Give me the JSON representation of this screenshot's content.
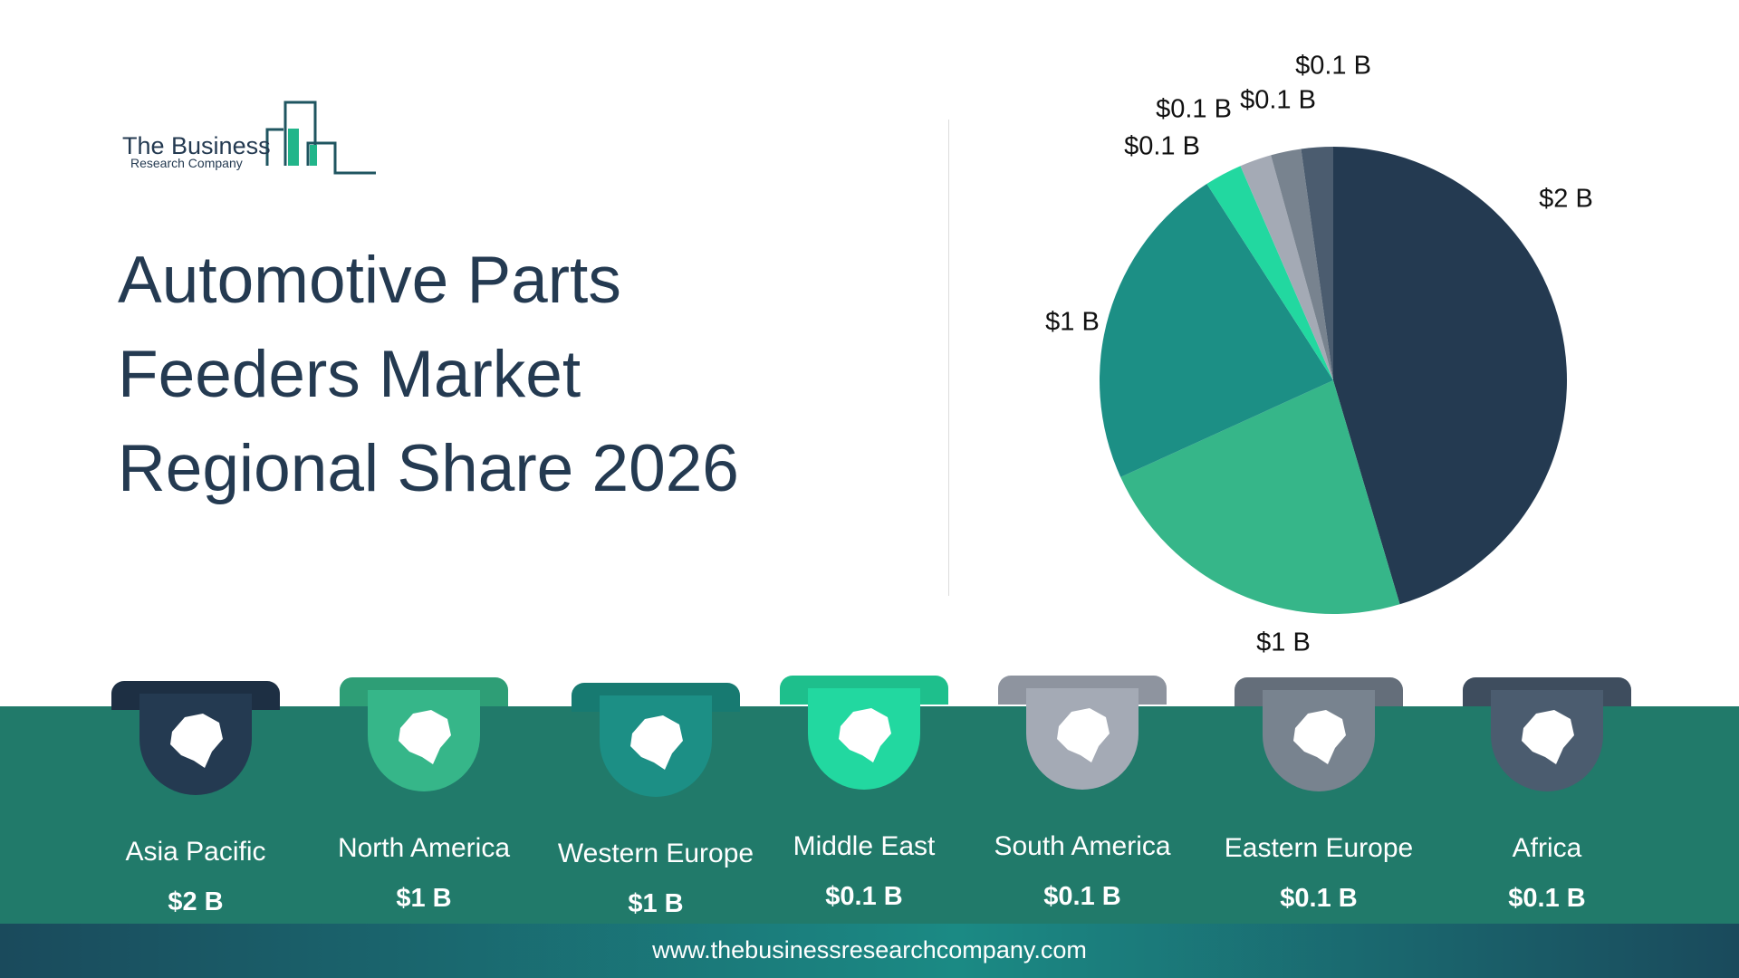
{
  "logo": {
    "line1": "The Business",
    "line2": "Research Company"
  },
  "title": [
    "Automotive Parts",
    "Feeders Market",
    "Regional Share 2026"
  ],
  "footer": {
    "url": "www.thebusinessresearchcompany.com"
  },
  "chart_data": {
    "type": "pie",
    "title": "Automotive Parts Feeders Market Regional Share 2026",
    "start": "top, clockwise",
    "slices": [
      {
        "name": "Asia Pacific",
        "label": "$2 B",
        "share_pct": 45.4,
        "color": "#243a51"
      },
      {
        "name": "North America",
        "label": "$1 B",
        "share_pct": 22.8,
        "color": "#36b689"
      },
      {
        "name": "Western Europe",
        "label": "$1 B",
        "share_pct": 22.7,
        "color": "#1c8f85"
      },
      {
        "name": "Middle East",
        "label": "$0.1 B",
        "share_pct": 2.6,
        "color": "#22d8a0"
      },
      {
        "name": "South America",
        "label": "$0.1 B",
        "share_pct": 2.2,
        "color": "#a4aab5"
      },
      {
        "name": "Eastern Europe",
        "label": "$0.1 B",
        "share_pct": 2.1,
        "color": "#78838f"
      },
      {
        "name": "Africa",
        "label": "$0.1 B",
        "share_pct": 2.2,
        "color": "#4b5c6f"
      }
    ]
  },
  "regions": [
    {
      "name": "Asia Pacific",
      "value": "$2 B",
      "icon": "asia-map-icon",
      "color": "#243a51",
      "tab": "#1d2f43"
    },
    {
      "name": "North America",
      "value": "$1 B",
      "icon": "north-america-map-icon",
      "color": "#36b689",
      "tab": "#2e9e76"
    },
    {
      "name": "Western Europe",
      "value": "$1 B",
      "icon": "europe-map-icon",
      "color": "#1c8f85",
      "tab": "#177a71"
    },
    {
      "name": "Middle East",
      "value": "$0.1 B",
      "icon": "middle-east-map-icon",
      "color": "#22d8a0",
      "tab": "#1ebf8c"
    },
    {
      "name": "South America",
      "value": "$0.1 B",
      "icon": "south-america-map-icon",
      "color": "#a4aab5",
      "tab": "#8e949f"
    },
    {
      "name": "Eastern Europe",
      "value": "$0.1 B",
      "icon": "eastern-europe-map-icon",
      "color": "#78838f",
      "tab": "#646e7a"
    },
    {
      "name": "Africa",
      "value": "$0.1 B",
      "icon": "africa-map-icon",
      "color": "#4b5c6f",
      "tab": "#3e4d5e"
    }
  ]
}
